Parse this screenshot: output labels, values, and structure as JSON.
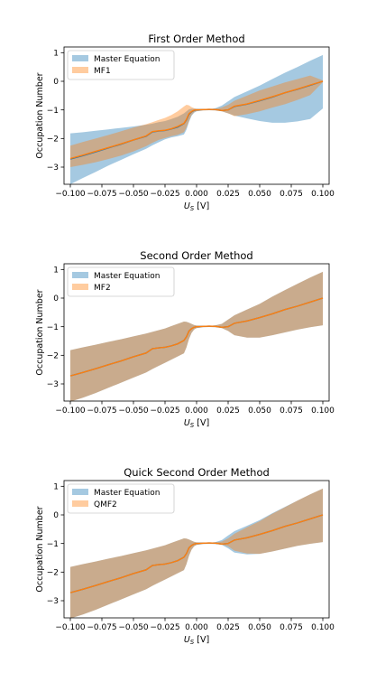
{
  "chart_data": [
    {
      "type": "line",
      "title": "First Order Method",
      "xlabel": "U_S [V]",
      "ylabel": "Occupation Number",
      "xlim": [
        -0.105,
        0.105
      ],
      "ylim": [
        -3.6,
        1.2
      ],
      "xticks": [
        "-0.100",
        "-0.075",
        "-0.050",
        "-0.025",
        "0.000",
        "0.025",
        "0.050",
        "0.075",
        "0.100"
      ],
      "yticks": [
        "-3",
        "-2",
        "-1",
        "0",
        "1"
      ],
      "legend": {
        "placement": "top-left",
        "entries": [
          "Master Equation",
          "MF1"
        ]
      },
      "x": [
        -0.1,
        -0.09,
        -0.08,
        -0.07,
        -0.06,
        -0.05,
        -0.04,
        -0.035,
        -0.03,
        -0.025,
        -0.02,
        -0.015,
        -0.01,
        -0.008,
        -0.006,
        -0.004,
        -0.002,
        0.0,
        0.005,
        0.01,
        0.015,
        0.02,
        0.025,
        0.03,
        0.04,
        0.05,
        0.06,
        0.07,
        0.08,
        0.09,
        0.1
      ],
      "series": [
        {
          "name": "Master Equation",
          "color": "#1f77b4",
          "mean": [
            -2.72,
            -2.6,
            -2.47,
            -2.33,
            -2.2,
            -2.05,
            -1.92,
            -1.77,
            -1.74,
            -1.72,
            -1.67,
            -1.6,
            -1.48,
            -1.35,
            -1.15,
            -1.07,
            -1.02,
            -1.0,
            -0.99,
            -0.98,
            -0.99,
            -1.02,
            -1.0,
            -0.88,
            -0.8,
            -0.68,
            -0.55,
            -0.4,
            -0.28,
            -0.14,
            0.0
          ],
          "upper": [
            -1.82,
            -1.78,
            -1.73,
            -1.68,
            -1.63,
            -1.58,
            -1.52,
            -1.48,
            -1.43,
            -1.39,
            -1.32,
            -1.24,
            -1.12,
            -1.05,
            -0.98,
            -0.96,
            -0.96,
            -0.96,
            -0.97,
            -0.97,
            -0.94,
            -0.85,
            -0.7,
            -0.55,
            -0.35,
            -0.15,
            0.08,
            0.3,
            0.5,
            0.72,
            0.92
          ],
          "lower": [
            -3.6,
            -3.38,
            -3.17,
            -2.95,
            -2.75,
            -2.55,
            -2.36,
            -2.24,
            -2.13,
            -2.03,
            -1.96,
            -1.92,
            -1.86,
            -1.69,
            -1.42,
            -1.21,
            -1.1,
            -1.05,
            -1.02,
            -1.01,
            -1.02,
            -1.05,
            -1.12,
            -1.2,
            -1.3,
            -1.39,
            -1.45,
            -1.45,
            -1.4,
            -1.32,
            -0.95
          ]
        },
        {
          "name": "MF1",
          "color": "#ff7f0e",
          "mean": [
            -2.7,
            -2.58,
            -2.45,
            -2.32,
            -2.19,
            -2.05,
            -1.91,
            -1.76,
            -1.73,
            -1.71,
            -1.66,
            -1.58,
            -1.47,
            -1.33,
            -1.13,
            -1.06,
            -1.01,
            -1.0,
            -0.99,
            -0.98,
            -0.99,
            -1.02,
            -1.0,
            -0.87,
            -0.79,
            -0.67,
            -0.54,
            -0.4,
            -0.27,
            -0.13,
            0.0
          ],
          "upper": [
            -2.25,
            -2.12,
            -2.0,
            -1.88,
            -1.75,
            -1.62,
            -1.5,
            -1.43,
            -1.35,
            -1.28,
            -1.18,
            -1.05,
            -0.88,
            -0.82,
            -0.84,
            -0.9,
            -0.94,
            -0.96,
            -0.97,
            -0.97,
            -0.96,
            -0.91,
            -0.82,
            -0.68,
            -0.5,
            -0.32,
            -0.18,
            -0.04,
            0.08,
            0.2,
            0.03
          ],
          "lower": [
            -3.0,
            -2.92,
            -2.83,
            -2.72,
            -2.6,
            -2.45,
            -2.27,
            -2.15,
            -2.05,
            -1.98,
            -1.92,
            -1.87,
            -1.78,
            -1.62,
            -1.38,
            -1.18,
            -1.08,
            -1.04,
            -1.02,
            -1.01,
            -1.02,
            -1.05,
            -1.12,
            -1.22,
            -1.15,
            -1.05,
            -0.92,
            -0.8,
            -0.65,
            -0.48,
            -0.03
          ]
        }
      ]
    },
    {
      "type": "line",
      "title": "Second Order Method",
      "xlabel": "U_S [V]",
      "ylabel": "Occupation Number",
      "xlim": [
        -0.105,
        0.105
      ],
      "ylim": [
        -3.6,
        1.2
      ],
      "xticks": [
        "-0.100",
        "-0.075",
        "-0.050",
        "-0.025",
        "0.000",
        "0.025",
        "0.050",
        "0.075",
        "0.100"
      ],
      "yticks": [
        "-3",
        "-2",
        "-1",
        "0",
        "1"
      ],
      "legend": {
        "placement": "top-left",
        "entries": [
          "Master Equation",
          "MF2"
        ]
      },
      "x": [
        -0.1,
        -0.09,
        -0.08,
        -0.07,
        -0.06,
        -0.05,
        -0.04,
        -0.035,
        -0.03,
        -0.025,
        -0.02,
        -0.015,
        -0.01,
        -0.008,
        -0.006,
        -0.004,
        -0.002,
        0.0,
        0.005,
        0.01,
        0.015,
        0.02,
        0.025,
        0.03,
        0.04,
        0.05,
        0.06,
        0.07,
        0.08,
        0.09,
        0.1
      ],
      "series": [
        {
          "name": "Master Equation",
          "color": "#1f77b4",
          "mean": [
            -2.72,
            -2.6,
            -2.47,
            -2.33,
            -2.2,
            -2.05,
            -1.92,
            -1.77,
            -1.74,
            -1.72,
            -1.67,
            -1.6,
            -1.48,
            -1.35,
            -1.15,
            -1.07,
            -1.02,
            -1.0,
            -0.99,
            -0.98,
            -0.99,
            -1.02,
            -1.0,
            -0.88,
            -0.8,
            -0.68,
            -0.55,
            -0.4,
            -0.28,
            -0.14,
            0.0
          ],
          "upper": [
            -1.82,
            -1.72,
            -1.63,
            -1.53,
            -1.44,
            -1.34,
            -1.24,
            -1.18,
            -1.12,
            -1.06,
            -0.98,
            -0.9,
            -0.82,
            -0.83,
            -0.86,
            -0.9,
            -0.94,
            -0.96,
            -0.97,
            -0.97,
            -0.95,
            -0.9,
            -0.75,
            -0.6,
            -0.4,
            -0.2,
            0.05,
            0.28,
            0.5,
            0.72,
            0.92
          ],
          "lower": [
            -3.62,
            -3.48,
            -3.32,
            -3.14,
            -2.96,
            -2.78,
            -2.6,
            -2.48,
            -2.37,
            -2.26,
            -2.15,
            -2.04,
            -1.93,
            -1.72,
            -1.43,
            -1.22,
            -1.1,
            -1.05,
            -1.02,
            -1.01,
            -1.02,
            -1.05,
            -1.15,
            -1.3,
            -1.38,
            -1.38,
            -1.3,
            -1.2,
            -1.1,
            -1.02,
            -0.95
          ]
        },
        {
          "name": "MF2",
          "color": "#ff7f0e",
          "mean": [
            -2.72,
            -2.6,
            -2.47,
            -2.33,
            -2.2,
            -2.05,
            -1.92,
            -1.77,
            -1.74,
            -1.72,
            -1.67,
            -1.6,
            -1.48,
            -1.35,
            -1.15,
            -1.07,
            -1.02,
            -1.0,
            -0.99,
            -0.98,
            -0.99,
            -1.02,
            -1.0,
            -0.88,
            -0.8,
            -0.68,
            -0.55,
            -0.4,
            -0.28,
            -0.14,
            0.0
          ],
          "upper": [
            -1.82,
            -1.72,
            -1.63,
            -1.53,
            -1.44,
            -1.34,
            -1.24,
            -1.18,
            -1.12,
            -1.06,
            -0.98,
            -0.9,
            -0.82,
            -0.83,
            -0.86,
            -0.9,
            -0.94,
            -0.96,
            -0.97,
            -0.97,
            -0.95,
            -0.9,
            -0.75,
            -0.6,
            -0.4,
            -0.2,
            0.05,
            0.28,
            0.5,
            0.72,
            0.92
          ],
          "lower": [
            -3.62,
            -3.48,
            -3.32,
            -3.14,
            -2.96,
            -2.78,
            -2.6,
            -2.48,
            -2.37,
            -2.26,
            -2.15,
            -2.04,
            -1.93,
            -1.72,
            -1.43,
            -1.22,
            -1.1,
            -1.05,
            -1.02,
            -1.01,
            -1.02,
            -1.05,
            -1.15,
            -1.3,
            -1.38,
            -1.38,
            -1.3,
            -1.2,
            -1.1,
            -1.02,
            -0.95
          ]
        }
      ]
    },
    {
      "type": "line",
      "title": "Quick Second Order Method",
      "xlabel": "U_S [V]",
      "ylabel": "Occupation Number",
      "xlim": [
        -0.105,
        0.105
      ],
      "ylim": [
        -3.6,
        1.2
      ],
      "xticks": [
        "-0.100",
        "-0.075",
        "-0.050",
        "-0.025",
        "0.000",
        "0.025",
        "0.050",
        "0.075",
        "0.100"
      ],
      "yticks": [
        "-3",
        "-2",
        "-1",
        "0",
        "1"
      ],
      "legend": {
        "placement": "top-left",
        "entries": [
          "Master Equation",
          "QMF2"
        ]
      },
      "x": [
        -0.1,
        -0.09,
        -0.08,
        -0.07,
        -0.06,
        -0.05,
        -0.04,
        -0.035,
        -0.03,
        -0.025,
        -0.02,
        -0.015,
        -0.01,
        -0.008,
        -0.006,
        -0.004,
        -0.002,
        0.0,
        0.005,
        0.01,
        0.015,
        0.02,
        0.025,
        0.03,
        0.04,
        0.05,
        0.06,
        0.07,
        0.08,
        0.09,
        0.1
      ],
      "series": [
        {
          "name": "Master Equation",
          "color": "#1f77b4",
          "mean": [
            -2.72,
            -2.6,
            -2.47,
            -2.33,
            -2.2,
            -2.05,
            -1.92,
            -1.77,
            -1.74,
            -1.72,
            -1.67,
            -1.6,
            -1.48,
            -1.35,
            -1.15,
            -1.07,
            -1.02,
            -1.0,
            -0.99,
            -0.98,
            -0.99,
            -1.02,
            -1.0,
            -0.88,
            -0.8,
            -0.68,
            -0.55,
            -0.4,
            -0.28,
            -0.14,
            0.0
          ],
          "upper": [
            -1.82,
            -1.72,
            -1.63,
            -1.53,
            -1.44,
            -1.34,
            -1.24,
            -1.18,
            -1.12,
            -1.06,
            -0.98,
            -0.9,
            -0.82,
            -0.83,
            -0.86,
            -0.9,
            -0.94,
            -0.96,
            -0.97,
            -0.97,
            -0.95,
            -0.88,
            -0.72,
            -0.57,
            -0.38,
            -0.18,
            0.06,
            0.28,
            0.5,
            0.72,
            0.92
          ],
          "lower": [
            -3.62,
            -3.48,
            -3.32,
            -3.14,
            -2.96,
            -2.78,
            -2.6,
            -2.48,
            -2.37,
            -2.26,
            -2.15,
            -2.04,
            -1.93,
            -1.72,
            -1.43,
            -1.22,
            -1.1,
            -1.05,
            -1.02,
            -1.01,
            -1.02,
            -1.05,
            -1.17,
            -1.32,
            -1.38,
            -1.36,
            -1.28,
            -1.18,
            -1.08,
            -1.01,
            -0.95
          ]
        },
        {
          "name": "QMF2",
          "color": "#ff7f0e",
          "mean": [
            -2.72,
            -2.6,
            -2.47,
            -2.33,
            -2.2,
            -2.05,
            -1.92,
            -1.77,
            -1.74,
            -1.72,
            -1.67,
            -1.6,
            -1.48,
            -1.35,
            -1.15,
            -1.07,
            -1.02,
            -1.0,
            -0.99,
            -0.98,
            -0.99,
            -1.02,
            -1.0,
            -0.88,
            -0.8,
            -0.68,
            -0.55,
            -0.4,
            -0.28,
            -0.14,
            0.0
          ],
          "upper": [
            -1.82,
            -1.72,
            -1.63,
            -1.53,
            -1.44,
            -1.34,
            -1.24,
            -1.18,
            -1.12,
            -1.06,
            -0.98,
            -0.9,
            -0.82,
            -0.83,
            -0.86,
            -0.9,
            -0.94,
            -0.96,
            -0.97,
            -0.97,
            -0.96,
            -0.93,
            -0.82,
            -0.66,
            -0.43,
            -0.22,
            0.04,
            0.27,
            0.5,
            0.72,
            0.92
          ],
          "lower": [
            -3.62,
            -3.48,
            -3.32,
            -3.14,
            -2.96,
            -2.78,
            -2.6,
            -2.48,
            -2.37,
            -2.26,
            -2.15,
            -2.04,
            -1.93,
            -1.72,
            -1.43,
            -1.22,
            -1.1,
            -1.05,
            -1.02,
            -1.01,
            -1.02,
            -1.04,
            -1.1,
            -1.25,
            -1.35,
            -1.36,
            -1.28,
            -1.18,
            -1.08,
            -1.01,
            -0.95
          ]
        }
      ]
    }
  ]
}
